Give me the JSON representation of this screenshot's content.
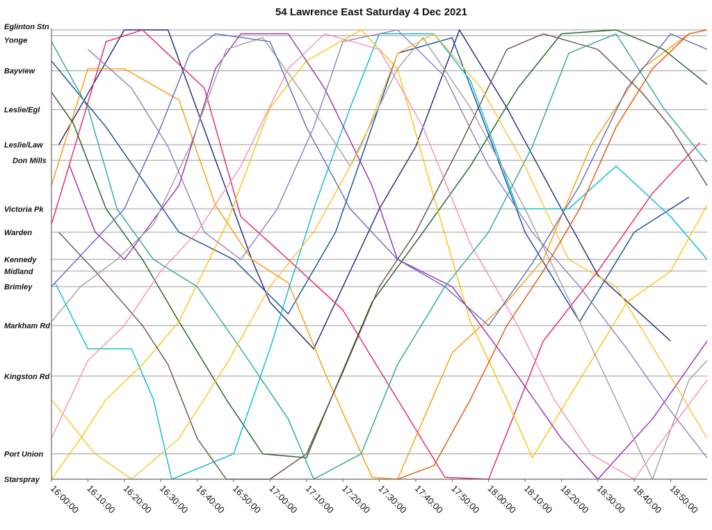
{
  "chart_data": {
    "type": "line",
    "title": "54 Lawrence East Saturday 4 Dec 2021",
    "x_axis": {
      "kind": "time",
      "range": [
        "16:00:00",
        "19:00:00"
      ],
      "tick_labels": [
        "16:00:00",
        "16:10:00",
        "16:20:00",
        "16:30:00",
        "16:40:00",
        "16:50:00",
        "17:00:00",
        "17:10:00",
        "17:20:00",
        "17:30:00",
        "17:40:00",
        "17:50:00",
        "18:00:00",
        "18:10:00",
        "18:20:00",
        "18:30:00",
        "18:40:00",
        "18:50:00"
      ]
    },
    "y_axis": {
      "kind": "stops",
      "stops": [
        "Eglinton Stn",
        "Yonge",
        "Bayview",
        "Leslie/Egl",
        "Leslie/Law",
        "Don Mills",
        "Victoria Pk",
        "Warden",
        "Kennedy",
        "Midland",
        "Brimley",
        "Markham Rd",
        "Kingston Rd",
        "Port Union",
        "Starspray"
      ],
      "stop_distance_km": [
        0,
        0.15,
        1.05,
        2.05,
        2.95,
        3.35,
        4.6,
        5.2,
        5.9,
        6.2,
        6.6,
        7.6,
        8.9,
        10.9,
        11.55
      ]
    },
    "grid": true,
    "legend": "none",
    "series": [
      {
        "color": "#1a237e",
        "points": [
          [
            "16:02:00",
            2.95
          ],
          [
            "16:20:00",
            0
          ],
          [
            "16:32:00",
            0
          ],
          [
            "16:55:00",
            5.9
          ],
          [
            "17:00:00",
            7.0
          ],
          [
            "17:12:00",
            8.2
          ],
          [
            "17:30:00",
            4.6
          ],
          [
            "17:40:00",
            3.0
          ],
          [
            "17:52:00",
            0
          ],
          [
            "18:05:00",
            2.0
          ],
          [
            "18:20:00",
            4.6
          ],
          [
            "18:30:00",
            6.3
          ],
          [
            "18:50:00",
            8.0
          ]
        ]
      },
      {
        "color": "#0d47a1",
        "points": [
          [
            "16:00:00",
            0.8
          ],
          [
            "16:15:00",
            2.5
          ],
          [
            "16:35:00",
            5.2
          ],
          [
            "16:50:00",
            5.9
          ],
          [
            "17:05:00",
            7.3
          ],
          [
            "17:18:00",
            5.2
          ],
          [
            "17:35:00",
            0.6
          ],
          [
            "17:50:00",
            0.2
          ],
          [
            "18:10:00",
            5.2
          ],
          [
            "18:25:00",
            7.5
          ],
          [
            "18:40:00",
            5.2
          ],
          [
            "18:55:00",
            4.3
          ]
        ]
      },
      {
        "color": "#e91e63",
        "points": [
          [
            "16:00:00",
            5.0
          ],
          [
            "16:08:00",
            2.5
          ],
          [
            "16:15:00",
            0.3
          ],
          [
            "16:25:00",
            0
          ],
          [
            "16:42:00",
            1.5
          ],
          [
            "16:52:00",
            4.8
          ],
          [
            "17:05:00",
            5.9
          ],
          [
            "17:20:00",
            7.2
          ],
          [
            "17:35:00",
            9.5
          ],
          [
            "17:48:00",
            11.5
          ],
          [
            "18:00:00",
            11.55
          ],
          [
            "18:15:00",
            8.0
          ],
          [
            "18:30:00",
            6.2
          ],
          [
            "18:45:00",
            4.2
          ],
          [
            "18:58:00",
            2.9
          ]
        ]
      },
      {
        "color": "#ff9800",
        "points": [
          [
            "16:00:00",
            4.0
          ],
          [
            "16:10:00",
            1.0
          ],
          [
            "16:20:00",
            1.0
          ],
          [
            "16:35:00",
            1.8
          ],
          [
            "16:45:00",
            4.5
          ],
          [
            "16:55:00",
            5.9
          ],
          [
            "17:05:00",
            6.5
          ],
          [
            "17:15:00",
            8.8
          ],
          [
            "17:28:00",
            11.5
          ],
          [
            "17:35:00",
            11.55
          ],
          [
            "17:50:00",
            8.3
          ],
          [
            "18:05:00",
            7.0
          ],
          [
            "18:15:00",
            5.9
          ],
          [
            "18:28:00",
            3.0
          ],
          [
            "18:42:00",
            1.0
          ],
          [
            "18:55:00",
            0.1
          ]
        ]
      },
      {
        "color": "#1b5e20",
        "points": [
          [
            "16:00:00",
            1.6
          ],
          [
            "16:06:00",
            2.4
          ],
          [
            "16:15:00",
            4.6
          ],
          [
            "16:25:00",
            5.9
          ],
          [
            "16:35:00",
            7.5
          ],
          [
            "16:48:00",
            9.5
          ],
          [
            "16:58:00",
            10.9
          ],
          [
            "17:10:00",
            11.0
          ],
          [
            "17:18:00",
            9.2
          ],
          [
            "17:28:00",
            7.0
          ],
          [
            "17:42:00",
            5.2
          ],
          [
            "17:55:00",
            3.5
          ],
          [
            "18:08:00",
            1.5
          ],
          [
            "18:20:00",
            0.1
          ],
          [
            "18:35:00",
            0
          ],
          [
            "18:48:00",
            0.5
          ],
          [
            "19:00:00",
            1.4
          ]
        ]
      },
      {
        "color": "#00bcd4",
        "points": [
          [
            "16:01:00",
            6.5
          ],
          [
            "16:10:00",
            8.2
          ],
          [
            "16:22:00",
            8.2
          ],
          [
            "16:28:00",
            9.5
          ],
          [
            "16:33:00",
            11.55
          ],
          [
            "16:50:00",
            10.9
          ],
          [
            "17:00:00",
            8.2
          ],
          [
            "17:12:00",
            4.6
          ],
          [
            "17:22:00",
            2.0
          ],
          [
            "17:30:00",
            0.1
          ],
          [
            "17:45:00",
            0.1
          ],
          [
            "17:55:00",
            1.3
          ],
          [
            "18:08:00",
            4.6
          ],
          [
            "18:22:00",
            4.6
          ],
          [
            "18:35:00",
            3.5
          ],
          [
            "18:50:00",
            4.8
          ],
          [
            "19:00:00",
            5.9
          ]
        ]
      },
      {
        "color": "#ffc107",
        "points": [
          [
            "16:00:00",
            11.55
          ],
          [
            "16:08:00",
            10.5
          ],
          [
            "16:15:00",
            9.5
          ],
          [
            "16:25:00",
            8.6
          ],
          [
            "16:35:00",
            7.5
          ],
          [
            "16:48:00",
            5.0
          ],
          [
            "17:00:00",
            2.0
          ],
          [
            "17:10:00",
            0.8
          ],
          [
            "17:25:00",
            0
          ],
          [
            "17:35:00",
            1.0
          ],
          [
            "17:45:00",
            4.3
          ],
          [
            "17:55:00",
            7.5
          ],
          [
            "18:05:00",
            9.5
          ],
          [
            "18:12:00",
            11.0
          ],
          [
            "18:25:00",
            9.0
          ],
          [
            "18:38:00",
            7.0
          ],
          [
            "18:50:00",
            6.2
          ],
          [
            "19:00:00",
            4.5
          ]
        ]
      },
      {
        "color": "#9c27b0",
        "points": [
          [
            "16:05:00",
            3.5
          ],
          [
            "16:12:00",
            5.2
          ],
          [
            "16:20:00",
            5.9
          ],
          [
            "16:35:00",
            4.0
          ],
          [
            "16:45:00",
            1.0
          ],
          [
            "16:52:00",
            0.1
          ],
          [
            "17:05:00",
            0.1
          ],
          [
            "17:15:00",
            1.5
          ],
          [
            "17:28:00",
            4.0
          ],
          [
            "17:35:00",
            5.9
          ],
          [
            "17:50:00",
            6.6
          ],
          [
            "18:05:00",
            8.5
          ],
          [
            "18:20:00",
            10.5
          ],
          [
            "18:30:00",
            11.55
          ],
          [
            "18:45:00",
            10.0
          ],
          [
            "19:00:00",
            8.0
          ]
        ]
      },
      {
        "color": "#6d4c41",
        "points": [
          [
            "16:02:00",
            5.2
          ],
          [
            "16:12:00",
            6.2
          ],
          [
            "16:25:00",
            7.6
          ],
          [
            "16:32:00",
            8.6
          ],
          [
            "16:40:00",
            10.5
          ],
          [
            "16:48:00",
            11.55
          ],
          [
            "17:00:00",
            11.55
          ],
          [
            "17:10:00",
            10.9
          ],
          [
            "17:20:00",
            8.8
          ],
          [
            "17:30:00",
            6.6
          ],
          [
            "17:40:00",
            5.2
          ],
          [
            "17:52:00",
            3.0
          ],
          [
            "18:05:00",
            0.5
          ],
          [
            "18:15:00",
            0.1
          ],
          [
            "18:30:00",
            0.5
          ],
          [
            "18:42:00",
            1.6
          ],
          [
            "18:50:00",
            2.5
          ],
          [
            "19:00:00",
            4.0
          ]
        ]
      },
      {
        "color": "#9e9e9e",
        "points": [
          [
            "16:00:00",
            7.5
          ],
          [
            "16:08:00",
            6.6
          ],
          [
            "16:18:00",
            5.9
          ],
          [
            "16:28:00",
            5.0
          ],
          [
            "16:38:00",
            3.0
          ],
          [
            "16:48:00",
            0.5
          ],
          [
            "16:58:00",
            0.2
          ],
          [
            "17:08:00",
            1.5
          ],
          [
            "17:22:00",
            3.5
          ],
          [
            "17:35:00",
            1.0
          ],
          [
            "17:42:00",
            0.2
          ],
          [
            "17:55:00",
            2.0
          ],
          [
            "18:10:00",
            4.6
          ],
          [
            "18:25:00",
            7.5
          ],
          [
            "18:35:00",
            9.5
          ],
          [
            "18:45:00",
            11.55
          ],
          [
            "18:55:00",
            9.0
          ],
          [
            "19:00:00",
            8.5
          ]
        ]
      },
      {
        "color": "#8e7cc3",
        "points": [
          [
            "16:10:00",
            0.5
          ],
          [
            "16:22:00",
            1.5
          ],
          [
            "16:32:00",
            3.0
          ],
          [
            "16:42:00",
            5.2
          ],
          [
            "16:52:00",
            5.9
          ],
          [
            "17:02:00",
            4.6
          ],
          [
            "17:12:00",
            2.5
          ],
          [
            "17:20:00",
            0.3
          ],
          [
            "17:35:00",
            0
          ],
          [
            "17:48:00",
            1.2
          ],
          [
            "18:00:00",
            3.5
          ],
          [
            "18:12:00",
            5.2
          ],
          [
            "18:25:00",
            6.6
          ],
          [
            "18:38:00",
            8.2
          ],
          [
            "18:50:00",
            9.8
          ],
          [
            "19:00:00",
            11.0
          ]
        ]
      },
      {
        "color": "#f48fb1",
        "points": [
          [
            "16:00:00",
            10.5
          ],
          [
            "16:10:00",
            8.5
          ],
          [
            "16:20:00",
            7.6
          ],
          [
            "16:30:00",
            6.2
          ],
          [
            "16:40:00",
            5.2
          ],
          [
            "16:52:00",
            3.5
          ],
          [
            "17:05:00",
            1.0
          ],
          [
            "17:15:00",
            0.1
          ],
          [
            "17:30:00",
            0.5
          ],
          [
            "17:42:00",
            2.5
          ],
          [
            "17:55:00",
            5.5
          ],
          [
            "18:08:00",
            7.6
          ],
          [
            "18:18:00",
            9.5
          ],
          [
            "18:28:00",
            10.9
          ],
          [
            "18:40:00",
            11.55
          ],
          [
            "18:52:00",
            10.0
          ],
          [
            "19:00:00",
            9.0
          ]
        ]
      },
      {
        "color": "#26a69a",
        "points": [
          [
            "16:00:00",
            0.3
          ],
          [
            "16:10:00",
            2.0
          ],
          [
            "16:18:00",
            4.6
          ],
          [
            "16:28:00",
            5.9
          ],
          [
            "16:40:00",
            6.6
          ],
          [
            "16:52:00",
            8.2
          ],
          [
            "17:05:00",
            10.0
          ],
          [
            "17:12:00",
            11.55
          ],
          [
            "17:25:00",
            10.9
          ],
          [
            "17:35:00",
            8.6
          ],
          [
            "17:48:00",
            6.6
          ],
          [
            "18:00:00",
            5.2
          ],
          [
            "18:12:00",
            3.0
          ],
          [
            "18:22:00",
            0.6
          ],
          [
            "18:35:00",
            0.1
          ],
          [
            "18:48:00",
            2.0
          ],
          [
            "19:00:00",
            3.4
          ]
        ]
      },
      {
        "color": "#fbc02d",
        "points": [
          [
            "16:00:00",
            9.5
          ],
          [
            "16:12:00",
            10.9
          ],
          [
            "16:22:00",
            11.55
          ],
          [
            "16:35:00",
            10.5
          ],
          [
            "16:48:00",
            8.6
          ],
          [
            "17:00:00",
            6.6
          ],
          [
            "17:12:00",
            5.2
          ],
          [
            "17:25:00",
            3.0
          ],
          [
            "17:35:00",
            0.6
          ],
          [
            "17:45:00",
            0.1
          ],
          [
            "17:58:00",
            1.5
          ],
          [
            "18:10:00",
            3.5
          ],
          [
            "18:22:00",
            5.9
          ],
          [
            "18:35:00",
            6.6
          ],
          [
            "18:48:00",
            8.6
          ],
          [
            "19:00:00",
            10.5
          ]
        ]
      },
      {
        "color": "#5c6bc0",
        "points": [
          [
            "16:00:00",
            6.6
          ],
          [
            "16:10:00",
            5.6
          ],
          [
            "16:20:00",
            4.6
          ],
          [
            "16:30:00",
            2.5
          ],
          [
            "16:38:00",
            0.6
          ],
          [
            "16:45:00",
            0.1
          ],
          [
            "17:00:00",
            0.3
          ],
          [
            "17:10:00",
            2.5
          ],
          [
            "17:22:00",
            4.6
          ],
          [
            "17:35:00",
            5.9
          ],
          [
            "17:48:00",
            6.6
          ],
          [
            "18:00:00",
            7.6
          ],
          [
            "18:12:00",
            6.0
          ],
          [
            "18:25:00",
            4.0
          ],
          [
            "18:38:00",
            1.5
          ],
          [
            "18:50:00",
            0.1
          ],
          [
            "19:00:00",
            0.5
          ]
        ]
      },
      {
        "color": "#e65100",
        "points": [
          [
            "17:35:00",
            11.55
          ],
          [
            "17:45:00",
            11.2
          ],
          [
            "17:55:00",
            9.5
          ],
          [
            "18:05:00",
            7.6
          ],
          [
            "18:15:00",
            6.2
          ],
          [
            "18:25:00",
            4.6
          ],
          [
            "18:35:00",
            2.5
          ],
          [
            "18:45:00",
            1.0
          ],
          [
            "18:55:00",
            0.1
          ],
          [
            "19:00:00",
            0
          ]
        ]
      }
    ]
  }
}
